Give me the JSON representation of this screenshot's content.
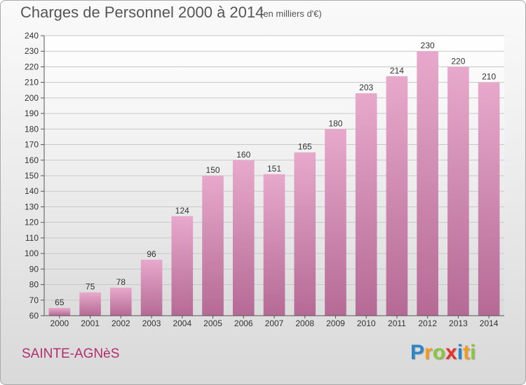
{
  "header": {
    "title": "Charges de Personnel 2000 à 2014",
    "subtitle": "(en milliers d'€)"
  },
  "footer": {
    "commune": "SAINTE-AGNèS",
    "brand_letters": [
      {
        "char": "P",
        "color": "#2b86c8"
      },
      {
        "char": "r",
        "color": "#f39a1e"
      },
      {
        "char": "o",
        "color": "#8cc63e"
      },
      {
        "char": "x",
        "color": "#e6332a"
      },
      {
        "char": "i",
        "color": "#2b86c8"
      },
      {
        "char": "t",
        "color": "#f39a1e"
      },
      {
        "char": "i",
        "color": "#8cc63e"
      }
    ]
  },
  "chart_data": {
    "type": "bar",
    "title": "Charges de Personnel 2000 à 2014",
    "subtitle": "(en milliers d'€)",
    "categories": [
      "2000",
      "2001",
      "2002",
      "2003",
      "2004",
      "2005",
      "2006",
      "2007",
      "2008",
      "2009",
      "2010",
      "2011",
      "2012",
      "2013",
      "2014"
    ],
    "values": [
      65,
      75,
      78,
      96,
      124,
      150,
      160,
      151,
      165,
      180,
      203,
      214,
      230,
      220,
      210
    ],
    "ylim": [
      60,
      240
    ],
    "yticks": [
      60,
      70,
      80,
      90,
      100,
      110,
      120,
      130,
      140,
      150,
      160,
      170,
      180,
      190,
      200,
      210,
      220,
      230,
      240
    ],
    "grid": true,
    "bar_color": "#d88bb6"
  }
}
